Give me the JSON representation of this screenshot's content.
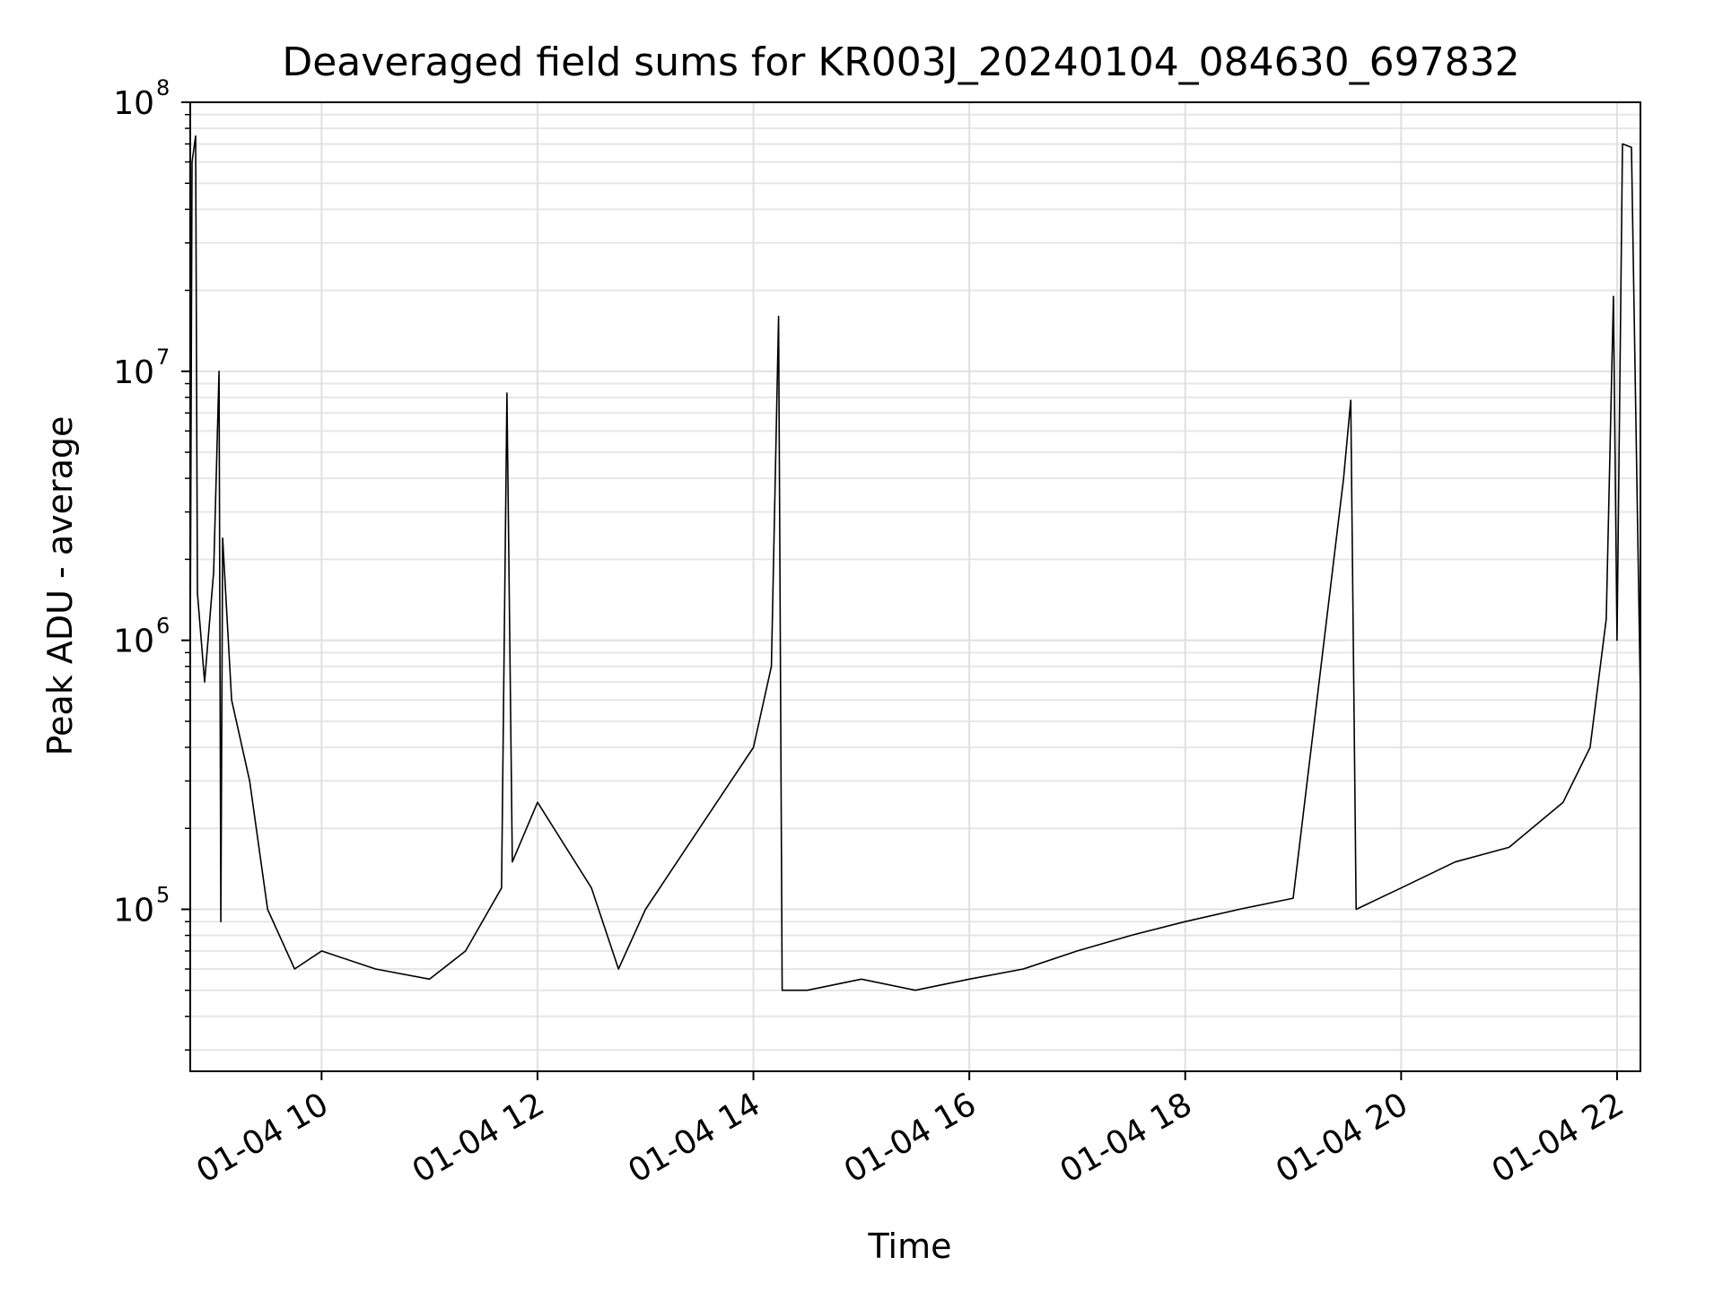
{
  "chart_data": {
    "type": "line",
    "title": "Deaveraged field sums for KR003J_20240104_084630_697832",
    "xlabel": "Time",
    "ylabel": "Peak ADU - average",
    "yscale": "log",
    "xlim": [
      "2024-01-04 08:47",
      "2024-01-04 22:13"
    ],
    "ylim": [
      25000,
      100000000
    ],
    "x_ticks": [
      "01-04 10",
      "01-04 12",
      "01-04 14",
      "01-04 16",
      "01-04 18",
      "01-04 20",
      "01-04 22"
    ],
    "y_ticks": [
      {
        "base": "10",
        "exp": "5"
      },
      {
        "base": "10",
        "exp": "7"
      },
      {
        "base": "10",
        "exp": "6"
      },
      {
        "base": "10",
        "exp": "8"
      }
    ],
    "grid": true,
    "line_color": "#000000",
    "series": [
      {
        "points": [
          [
            "2024-01-04 08:47",
            900000
          ],
          [
            "2024-01-04 08:48",
            60000000
          ],
          [
            "2024-01-04 08:50",
            75000000
          ],
          [
            "2024-01-04 08:51",
            1500000
          ],
          [
            "2024-01-04 08:55",
            700000
          ],
          [
            "2024-01-04 09:00",
            1800000
          ],
          [
            "2024-01-04 09:03",
            10000000
          ],
          [
            "2024-01-04 09:04",
            90000
          ],
          [
            "2024-01-04 09:05",
            2400000
          ],
          [
            "2024-01-04 09:10",
            600000
          ],
          [
            "2024-01-04 09:20",
            300000
          ],
          [
            "2024-01-04 09:30",
            100000
          ],
          [
            "2024-01-04 09:45",
            60000
          ],
          [
            "2024-01-04 10:00",
            70000
          ],
          [
            "2024-01-04 10:30",
            60000
          ],
          [
            "2024-01-04 11:00",
            55000
          ],
          [
            "2024-01-04 11:20",
            70000
          ],
          [
            "2024-01-04 11:40",
            120000
          ],
          [
            "2024-01-04 11:43",
            8300000
          ],
          [
            "2024-01-04 11:46",
            150000
          ],
          [
            "2024-01-04 12:00",
            250000
          ],
          [
            "2024-01-04 12:30",
            120000
          ],
          [
            "2024-01-04 12:45",
            60000
          ],
          [
            "2024-01-04 13:00",
            100000
          ],
          [
            "2024-01-04 13:30",
            200000
          ],
          [
            "2024-01-04 14:00",
            400000
          ],
          [
            "2024-01-04 14:10",
            800000
          ],
          [
            "2024-01-04 14:14",
            16000000
          ],
          [
            "2024-01-04 14:16",
            50000
          ],
          [
            "2024-01-04 14:30",
            50000
          ],
          [
            "2024-01-04 15:00",
            55000
          ],
          [
            "2024-01-04 15:30",
            50000
          ],
          [
            "2024-01-04 16:00",
            55000
          ],
          [
            "2024-01-04 16:30",
            60000
          ],
          [
            "2024-01-04 17:00",
            70000
          ],
          [
            "2024-01-04 17:30",
            80000
          ],
          [
            "2024-01-04 18:00",
            90000
          ],
          [
            "2024-01-04 18:30",
            100000
          ],
          [
            "2024-01-04 19:00",
            110000
          ],
          [
            "2024-01-04 19:28",
            4000000
          ],
          [
            "2024-01-04 19:32",
            7800000
          ],
          [
            "2024-01-04 19:35",
            100000
          ],
          [
            "2024-01-04 20:00",
            120000
          ],
          [
            "2024-01-04 20:30",
            150000
          ],
          [
            "2024-01-04 21:00",
            170000
          ],
          [
            "2024-01-04 21:30",
            250000
          ],
          [
            "2024-01-04 21:45",
            400000
          ],
          [
            "2024-01-04 21:54",
            1200000
          ],
          [
            "2024-01-04 21:58",
            19000000
          ],
          [
            "2024-01-04 22:00",
            1000000
          ],
          [
            "2024-01-04 22:03",
            70000000
          ],
          [
            "2024-01-04 22:08",
            68000000
          ],
          [
            "2024-01-04 22:13",
            600000
          ]
        ]
      }
    ]
  }
}
